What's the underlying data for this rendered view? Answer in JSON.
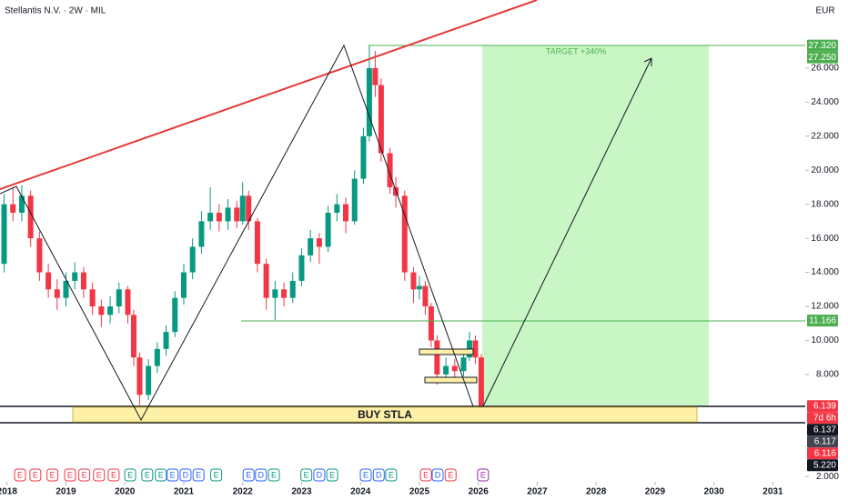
{
  "chart_data": {
    "type": "candlestick",
    "title": "Stellantis N.V. · 2W · MIL",
    "currency": "EUR",
    "x": [
      2017.95,
      2018.1,
      2018.25,
      2018.4,
      2018.55,
      2018.7,
      2018.85,
      2019.0,
      2019.15,
      2019.3,
      2019.45,
      2019.6,
      2019.75,
      2019.9,
      2020.05,
      2020.15,
      2020.25,
      2020.4,
      2020.55,
      2020.7,
      2020.85,
      2021.0,
      2021.15,
      2021.3,
      2021.45,
      2021.6,
      2021.75,
      2021.9,
      2022.0,
      2022.1,
      2022.25,
      2022.4,
      2022.55,
      2022.7,
      2022.85,
      2023.0,
      2023.15,
      2023.3,
      2023.45,
      2023.6,
      2023.75,
      2023.9,
      2024.05,
      2024.15,
      2024.25,
      2024.35,
      2024.5,
      2024.6,
      2024.75,
      2024.9,
      2025.0,
      2025.1,
      2025.2,
      2025.3,
      2025.45,
      2025.6,
      2025.75,
      2025.85,
      2025.95,
      2026.05
    ],
    "open": [
      14.5,
      18,
      17.5,
      18.5,
      16,
      14,
      13,
      12.5,
      13.5,
      14,
      13,
      12,
      11.5,
      12,
      13,
      11.5,
      9,
      6.8,
      8.5,
      9.5,
      10.5,
      12.5,
      14,
      15.5,
      17,
      17.5,
      17,
      17.8,
      17,
      18.5,
      17,
      14.5,
      12.5,
      13,
      12.5,
      13.5,
      15,
      16,
      15.5,
      17.5,
      18,
      17,
      19.5,
      22,
      26,
      25,
      21,
      19,
      18.5,
      14,
      13,
      13.2,
      12,
      10,
      8,
      8.5,
      8.2,
      9,
      10,
      9
    ],
    "high": [
      18.6,
      19.0,
      19.1,
      18.8,
      16.4,
      14.5,
      13.6,
      14.0,
      14.6,
      14.3,
      13.4,
      12.4,
      12.6,
      13.4,
      13.2,
      11.8,
      9.3,
      8.9,
      9.9,
      10.9,
      12.9,
      14.5,
      16.0,
      17.6,
      19.0,
      18.0,
      18.3,
      18.2,
      19.3,
      18.8,
      17.2,
      14.8,
      13.5,
      13.4,
      14.0,
      15.4,
      16.5,
      16.3,
      17.9,
      18.6,
      18.4,
      20.0,
      22.5,
      27.32,
      27.0,
      25.4,
      21.3,
      19.6,
      18.8,
      14.3,
      13.8,
      13.5,
      12.2,
      10.3,
      9.0,
      8.9,
      9.4,
      10.5,
      10.3,
      9.2
    ],
    "low": [
      14.0,
      17.0,
      17.0,
      15.5,
      13.5,
      12.5,
      11.8,
      12.0,
      13.0,
      12.5,
      11.5,
      10.8,
      11.0,
      11.6,
      11.0,
      8.5,
      6.2,
      6.5,
      8.1,
      9.1,
      10.2,
      12.1,
      13.6,
      15.1,
      16.5,
      16.4,
      16.5,
      16.6,
      16.8,
      16.5,
      14.0,
      11.8,
      11.2,
      12.0,
      12.2,
      13.2,
      14.6,
      14.5,
      15.2,
      17.0,
      16.3,
      16.8,
      19.2,
      21.7,
      24.3,
      20.5,
      18.6,
      17.8,
      13.5,
      12.2,
      12.4,
      11.5,
      9.6,
      7.4,
      7.6,
      7.8,
      7.9,
      8.8,
      8.6,
      6.1
    ],
    "close": [
      18,
      17.5,
      18.5,
      16,
      14,
      13,
      12.5,
      13.5,
      14,
      13,
      12,
      11.5,
      12,
      13,
      11.5,
      9,
      6.8,
      8.5,
      9.5,
      10.5,
      12.5,
      14,
      15.5,
      17,
      17.5,
      17,
      17.8,
      17,
      18.5,
      17,
      14.5,
      12.5,
      13,
      12.5,
      13.5,
      15,
      16,
      15.5,
      17.5,
      18,
      17,
      19.5,
      22,
      26,
      25,
      21,
      19,
      18.5,
      14,
      13,
      13.2,
      12,
      10,
      8,
      8.5,
      8.2,
      9,
      10,
      9,
      6.14
    ],
    "up_color": "#089981",
    "down_color": "#f23645",
    "xlim": [
      2017.88,
      2031.55
    ],
    "xticks": [
      2018,
      2019,
      2020,
      2021,
      2022,
      2023,
      2024,
      2025,
      2026,
      2027,
      2028,
      2029,
      2030,
      2031
    ],
    "ylim": [
      1.8,
      30
    ],
    "yticks": [
      {
        "value": 2,
        "label": "2.000"
      },
      {
        "value": 8,
        "label": "8.000"
      },
      {
        "value": 10,
        "label": "10.000"
      },
      {
        "value": 12,
        "label": "12.000"
      },
      {
        "value": 14,
        "label": "14.000"
      },
      {
        "value": 16,
        "label": "16.000"
      },
      {
        "value": 18,
        "label": "18.000"
      },
      {
        "value": 20,
        "label": "20.000"
      },
      {
        "value": 22,
        "label": "22.000"
      },
      {
        "value": 24,
        "label": "24.000"
      },
      {
        "value": 26,
        "label": "26.000"
      }
    ],
    "price_labels": [
      {
        "value": 27.32,
        "label": "27.320",
        "color": "#4caf50"
      },
      {
        "value": 27.25,
        "label": "27.250",
        "color": "#4caf50"
      },
      {
        "value": 11.166,
        "label": "11.166",
        "color": "#4caf50"
      },
      {
        "value": 6.139,
        "label": "6.139",
        "color": "#f23645"
      },
      {
        "label": "7d 6h",
        "color": "#f23645"
      },
      {
        "value": 6.137,
        "label": "6.137",
        "color": "#131722"
      },
      {
        "value": 6.117,
        "label": "6.117",
        "color": "#434651"
      },
      {
        "value": 6.116,
        "label": "6.116",
        "color": "#f23645"
      },
      {
        "value": 5.22,
        "label": "5.220",
        "color": "#131722"
      }
    ],
    "annotations": [
      "TARGET  +340%",
      "BUY STLA"
    ],
    "events": [
      {
        "x": 2018.22,
        "label": "E",
        "color": "#f23645"
      },
      {
        "x": 2018.48,
        "label": "E",
        "color": "#f23645"
      },
      {
        "x": 2018.77,
        "label": "E",
        "color": "#f23645"
      },
      {
        "x": 2019.07,
        "label": "E",
        "color": "#f23645"
      },
      {
        "x": 2019.31,
        "label": "E",
        "color": "#f23645"
      },
      {
        "x": 2019.56,
        "label": "E",
        "color": "#f23645"
      },
      {
        "x": 2019.81,
        "label": "E",
        "color": "#f23645"
      },
      {
        "x": 2020.09,
        "label": "E",
        "color": "#089981"
      },
      {
        "x": 2020.38,
        "label": "E",
        "color": "#089981"
      },
      {
        "x": 2020.61,
        "label": "E",
        "color": "#089981"
      },
      {
        "x": 2020.81,
        "label": "E",
        "color": "#2962ff"
      },
      {
        "x": 2021.03,
        "label": "D",
        "color": "#2962ff"
      },
      {
        "x": 2021.25,
        "label": "E",
        "color": "#2962ff"
      },
      {
        "x": 2021.55,
        "label": "E",
        "color": "#089981"
      },
      {
        "x": 2022.1,
        "label": "E",
        "color": "#2962ff"
      },
      {
        "x": 2022.31,
        "label": "D",
        "color": "#2962ff"
      },
      {
        "x": 2022.53,
        "label": "E",
        "color": "#089981"
      },
      {
        "x": 2023.08,
        "label": "E",
        "color": "#089981"
      },
      {
        "x": 2023.3,
        "label": "D",
        "color": "#2962ff"
      },
      {
        "x": 2023.52,
        "label": "E",
        "color": "#089981"
      },
      {
        "x": 2024.09,
        "label": "E",
        "color": "#2962ff"
      },
      {
        "x": 2024.31,
        "label": "D",
        "color": "#2962ff"
      },
      {
        "x": 2024.52,
        "label": "E",
        "color": "#089981"
      },
      {
        "x": 2025.11,
        "label": "E",
        "color": "#f23645"
      },
      {
        "x": 2025.31,
        "label": "D",
        "color": "#2962ff"
      },
      {
        "x": 2025.53,
        "label": "E",
        "color": "#f23645"
      },
      {
        "x": 2026.08,
        "label": "E",
        "color": "#9c27b0"
      }
    ]
  }
}
